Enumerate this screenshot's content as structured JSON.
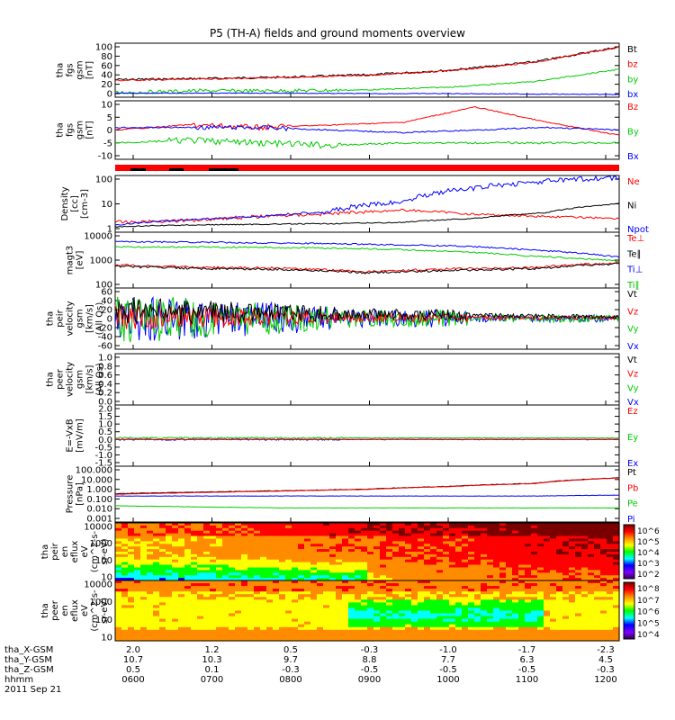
{
  "title": "P5 (TH-A) fields and ground moments overview",
  "panels": [
    {
      "ylabel": [
        "tha",
        "fgs",
        "gsm",
        "[nT]"
      ],
      "ticks": [
        "100",
        "80",
        "60",
        "40",
        "20",
        "0"
      ],
      "legend": [
        {
          "t": "Bt",
          "c": "#000000"
        },
        {
          "t": "bz",
          "c": "#ff0000"
        },
        {
          "t": "by",
          "c": "#00cc00"
        },
        {
          "t": "bx",
          "c": "#0000ff"
        }
      ]
    },
    {
      "ylabel": [
        "tha",
        "fgs",
        "gsm",
        "[nT]"
      ],
      "ticks": [
        "10",
        "5",
        "0",
        "-5",
        "-10"
      ],
      "legend": [
        {
          "t": "Bz",
          "c": "#ff0000"
        },
        {
          "t": "By",
          "c": "#00cc00"
        },
        {
          "t": "Bx",
          "c": "#0000ff"
        }
      ]
    },
    {
      "ylabel": [
        "Density",
        "[cc]",
        "[cm-3]"
      ],
      "ticks": [
        "100",
        "10",
        "1"
      ],
      "legend": [
        {
          "t": "Ne",
          "c": "#ff0000"
        },
        {
          "t": "Ni",
          "c": "#000000"
        },
        {
          "t": "Npot",
          "c": "#0000ff"
        }
      ]
    },
    {
      "ylabel": [
        "magt3",
        "[eV]"
      ],
      "ticks": [
        "10000",
        "1000",
        "100"
      ],
      "legend": [
        {
          "t": "Te⊥",
          "c": "#ff0000"
        },
        {
          "t": "Te∥",
          "c": "#000000"
        },
        {
          "t": "Ti⊥",
          "c": "#0000ff"
        },
        {
          "t": "Ti∥",
          "c": "#00cc00"
        }
      ]
    },
    {
      "ylabel": [
        "tha",
        "peir",
        "velocity",
        "gsm",
        "[km/s]",
        "(All Qs)"
      ],
      "ticks": [
        "60",
        "40",
        "20",
        "0",
        "-20",
        "-40",
        "-60"
      ],
      "legend": [
        {
          "t": "Vt",
          "c": "#000000"
        },
        {
          "t": "Vz",
          "c": "#ff0000"
        },
        {
          "t": "Vy",
          "c": "#00cc00"
        },
        {
          "t": "Vx",
          "c": "#0000ff"
        }
      ]
    },
    {
      "ylabel": [
        "tha",
        "peer",
        "velocity",
        "gsm",
        "[km/s]",
        "(All Qs)"
      ],
      "ticks": [
        "1.0",
        "0.8",
        "0.6",
        "0.4",
        "0.2",
        "0.0"
      ],
      "legend": [
        {
          "t": "Vt",
          "c": "#000000"
        },
        {
          "t": "Vz",
          "c": "#ff0000"
        },
        {
          "t": "Vy",
          "c": "#00cc00"
        },
        {
          "t": "Vx",
          "c": "#0000ff"
        }
      ]
    },
    {
      "ylabel": [
        "E=-VxB",
        "[mV/m]"
      ],
      "ticks": [
        "2.0",
        "1.5",
        "1.0",
        "0.5",
        "0.0",
        "-0.5",
        "-1.0",
        "-1.5"
      ],
      "legend": [
        {
          "t": "Ez",
          "c": "#ff0000"
        },
        {
          "t": "Ey",
          "c": "#00cc00"
        },
        {
          "t": "Ex",
          "c": "#0000ff"
        }
      ]
    },
    {
      "ylabel": [
        "Pressure",
        "[nPa]"
      ],
      "ticks": [
        "100.000",
        "10.000",
        "1.000",
        "0.100",
        "0.010",
        "0.001"
      ],
      "legend": [
        {
          "t": "Pt",
          "c": "#000000"
        },
        {
          "t": "Pb",
          "c": "#ff0000"
        },
        {
          "t": "Pe",
          "c": "#00cc00"
        },
        {
          "t": "Pi",
          "c": "#0000ff"
        }
      ]
    },
    {
      "ylabel": [
        "tha",
        "peir",
        "en",
        "eflux",
        "eV",
        "(cm^2-s-",
        "sr-eV)"
      ],
      "ticks": [
        "10000",
        "1000",
        "100",
        "10"
      ],
      "cbar": [
        "10^6",
        "10^5",
        "10^4",
        "10^3",
        "10^2"
      ]
    },
    {
      "ylabel": [
        "tha",
        "peer",
        "en",
        "eflux",
        "eV",
        "(cm^2-s-",
        "sr-eV)"
      ],
      "ticks": [
        "10000",
        "1000",
        "100",
        "10"
      ],
      "cbar": [
        "10^8",
        "10^7",
        "10^6",
        "10^5",
        "10^4"
      ]
    }
  ],
  "xaxis": {
    "row_labels": [
      "tha_X-GSM",
      "tha_Y-GSM",
      "tha_Z-GSM",
      "hhmm",
      "2011 Sep 21"
    ],
    "x_gsm": [
      "2.0",
      "1.2",
      "0.5",
      "-0.3",
      "-1.0",
      "-1.7",
      "-2.3"
    ],
    "y_gsm": [
      "10.7",
      "10.3",
      "9.7",
      "8.8",
      "7.7",
      "6.3",
      "4.5"
    ],
    "z_gsm": [
      "0.5",
      "0.1",
      "-0.3",
      "-0.5",
      "-0.5",
      "-0.5",
      "-0.3"
    ],
    "hhmm": [
      "0600",
      "0700",
      "0800",
      "0900",
      "1000",
      "1100",
      "1200"
    ]
  },
  "chart_data": {
    "type": "line",
    "title": "P5 (TH-A) fields and ground moments overview",
    "x": [
      "0600",
      "0700",
      "0800",
      "0900",
      "1000",
      "1100",
      "1200"
    ],
    "xlabel": "hhmm",
    "date": "2011 Sep 21",
    "series": [
      {
        "name": "Bt",
        "values": [
          32,
          34,
          38,
          42,
          55,
          75,
          105
        ]
      },
      {
        "name": "bz",
        "values": [
          30,
          33,
          37,
          41,
          54,
          74,
          104
        ]
      },
      {
        "name": "by",
        "values": [
          3,
          5,
          6,
          8,
          15,
          28,
          55
        ]
      },
      {
        "name": "bx",
        "values": [
          1,
          1,
          1,
          0,
          0,
          -1,
          -2
        ]
      },
      {
        "name": "Bz",
        "values": [
          -3,
          -2,
          0,
          3,
          8,
          2,
          -2
        ]
      },
      {
        "name": "By",
        "values": [
          -6,
          -5,
          -4,
          -5,
          -5,
          -5,
          -5
        ]
      },
      {
        "name": "Bx",
        "values": [
          1,
          1,
          1,
          0,
          -1,
          1,
          0
        ]
      },
      {
        "name": "Ne",
        "values": [
          0.5,
          1.0,
          2.0,
          3.0,
          2.5,
          1.5,
          1.0
        ]
      },
      {
        "name": "Ni",
        "values": [
          0.3,
          0.5,
          0.6,
          0.7,
          1.0,
          2.0,
          7.0
        ]
      },
      {
        "name": "Npot",
        "values": [
          0.5,
          1.0,
          2.0,
          8.0,
          60,
          150,
          200
        ]
      },
      {
        "name": "Te⊥",
        "values": [
          300,
          200,
          200,
          150,
          200,
          250,
          400
        ]
      },
      {
        "name": "Te∥",
        "values": [
          250,
          180,
          180,
          130,
          180,
          220,
          350
        ]
      },
      {
        "name": "Ti⊥",
        "values": [
          5000,
          5000,
          4500,
          3500,
          3000,
          1500,
          600
        ]
      },
      {
        "name": "Ti∥",
        "values": [
          3500,
          3000,
          3000,
          2500,
          1800,
          800,
          400
        ]
      }
    ]
  }
}
